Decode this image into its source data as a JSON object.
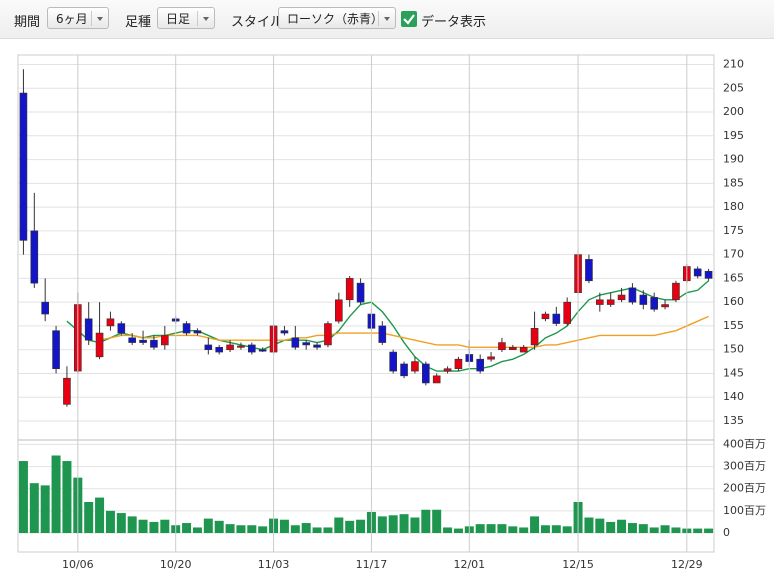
{
  "toolbar": {
    "items": [
      {
        "label": "期間",
        "value": "6ヶ月"
      },
      {
        "label": "足種",
        "value": "日足"
      },
      {
        "label": "スタイル",
        "value": "ローソク（赤青）"
      }
    ],
    "checkbox": "データ表示"
  },
  "chart_data": [
    {
      "type": "candlestick",
      "up_color": "#e60012",
      "down_color": "#1515c8",
      "open": [
        204,
        175,
        160,
        154,
        138.5,
        145.5,
        156.5,
        148.5,
        155,
        155.5,
        152.5,
        152,
        152,
        151,
        156.5,
        155.5,
        154,
        151,
        150.5,
        150,
        150.5,
        151,
        150,
        149.5,
        154,
        152.5,
        151.5,
        151,
        151,
        156,
        160.5,
        164,
        157.5,
        155,
        149.5,
        147,
        145.5,
        147,
        143,
        145.5,
        146,
        149,
        148,
        148,
        150,
        150,
        149.5,
        151,
        156.5,
        157.5,
        155.5,
        162,
        169,
        159.5,
        159.5,
        160.5,
        163,
        161.5,
        161,
        159,
        160.5,
        164.5,
        167,
        166.5
      ],
      "high": [
        209,
        183,
        165,
        155,
        146.5,
        162,
        160,
        160,
        158,
        156,
        153.5,
        154,
        153,
        155,
        157,
        156,
        154.5,
        152.5,
        151,
        152,
        151.5,
        151.5,
        150.5,
        155.5,
        155,
        155,
        152,
        151.5,
        156,
        162,
        165.5,
        165,
        158.5,
        156,
        150,
        147.5,
        148.5,
        147.5,
        145,
        146.5,
        148.5,
        152,
        149,
        149.5,
        152.5,
        151,
        151,
        158,
        158,
        159,
        161,
        171,
        170,
        162,
        162,
        163,
        164,
        162.5,
        162,
        160.5,
        164.5,
        168,
        167.5,
        167
      ],
      "low": [
        170,
        163,
        156,
        145,
        138,
        145,
        151,
        148,
        154,
        153,
        151,
        151,
        150,
        150,
        155.5,
        153,
        153,
        149,
        149,
        149.5,
        150,
        149,
        149.5,
        149,
        153,
        150,
        150,
        150,
        150.5,
        155.5,
        159,
        159.5,
        154,
        151,
        145,
        144,
        145,
        142.5,
        143,
        145,
        145.5,
        146.5,
        145,
        147.5,
        149.5,
        150,
        149.5,
        150,
        156,
        155,
        155,
        161.5,
        164,
        158,
        159,
        160,
        159.5,
        158.5,
        158,
        158.5,
        160,
        164,
        165,
        164.5
      ],
      "close": [
        173,
        164,
        157.5,
        146,
        144,
        159.5,
        152,
        153.5,
        156.5,
        153.5,
        151.5,
        151.5,
        150.5,
        153,
        156,
        153.5,
        153.5,
        150,
        149.5,
        151,
        150.8,
        149.5,
        149.8,
        155,
        153.5,
        150.5,
        151,
        150.5,
        155.5,
        160.5,
        165,
        160,
        154.5,
        151.5,
        145.5,
        144.5,
        147.5,
        143,
        144.5,
        146,
        148,
        147.5,
        145.5,
        148.5,
        151.5,
        150.5,
        150.5,
        154.5,
        157.5,
        155.5,
        160,
        170,
        164.5,
        160.5,
        160.5,
        161.5,
        160,
        159.5,
        158.5,
        159.5,
        164,
        167.5,
        165.5,
        165
      ],
      "moving_averages": [
        {
          "color": "#1d9a4e",
          "values": [
            null,
            null,
            null,
            null,
            156,
            154,
            152,
            151.5,
            152.5,
            153.5,
            153,
            152.5,
            153,
            153,
            153.5,
            154,
            154,
            153,
            152,
            151.5,
            151,
            150.5,
            150,
            151,
            152,
            152,
            152,
            151.5,
            152,
            154,
            157,
            159.5,
            160,
            158,
            155,
            151.5,
            148.5,
            146.5,
            145.5,
            145.5,
            145.5,
            146,
            146,
            146.5,
            147.5,
            148,
            149,
            150.5,
            152.5,
            153.5,
            155,
            158,
            160.5,
            161.5,
            162,
            162.5,
            163,
            162,
            161,
            160.5,
            160.5,
            162,
            162.5,
            164.5
          ]
        },
        {
          "color": "#f0a024",
          "values": [
            null,
            null,
            null,
            null,
            null,
            null,
            null,
            152,
            152.5,
            153,
            153,
            152.5,
            152.5,
            153,
            153,
            153,
            153,
            152.5,
            152,
            152,
            152,
            152,
            152,
            152,
            152,
            152.5,
            152.5,
            153,
            153,
            153.5,
            153.5,
            153.5,
            153.5,
            153.5,
            153,
            152.5,
            152,
            151.5,
            151,
            151,
            151,
            150.5,
            150.5,
            150.5,
            150.5,
            150.5,
            150.5,
            150.5,
            151,
            151,
            151.5,
            152,
            152.5,
            153,
            153,
            153,
            153,
            153,
            153,
            153.5,
            154,
            155,
            156,
            157
          ]
        }
      ],
      "ylim": [
        131,
        212
      ],
      "yticks": [
        135,
        140,
        145,
        150,
        155,
        160,
        165,
        170,
        175,
        180,
        185,
        190,
        195,
        200,
        205,
        210
      ],
      "grid": true
    },
    {
      "type": "bar",
      "color": "#1e9650",
      "categories": [
        null,
        null,
        null,
        null,
        null,
        "10/06",
        null,
        null,
        null,
        null,
        null,
        null,
        null,
        null,
        "10/20",
        null,
        null,
        null,
        null,
        null,
        null,
        null,
        null,
        "11/03",
        null,
        null,
        null,
        null,
        null,
        null,
        null,
        null,
        "11/17",
        null,
        null,
        null,
        null,
        null,
        null,
        null,
        null,
        "12/01",
        null,
        null,
        null,
        null,
        null,
        null,
        null,
        null,
        null,
        "12/15",
        null,
        null,
        null,
        null,
        null,
        null,
        null,
        null,
        null,
        "12/29",
        null,
        null
      ],
      "values": [
        325,
        225,
        215,
        350,
        325,
        250,
        140,
        160,
        100,
        90,
        75,
        60,
        50,
        60,
        35,
        45,
        25,
        65,
        55,
        40,
        35,
        35,
        30,
        65,
        60,
        35,
        45,
        25,
        25,
        70,
        55,
        60,
        95,
        75,
        80,
        85,
        70,
        105,
        105,
        25,
        20,
        30,
        40,
        40,
        40,
        30,
        25,
        75,
        35,
        35,
        30,
        140,
        70,
        65,
        50,
        60,
        45,
        40,
        25,
        35,
        25,
        20,
        20,
        20
      ],
      "ylim": [
        0,
        420
      ],
      "yticks": [
        {
          "value": 400,
          "label": "400百万"
        },
        {
          "value": 300,
          "label": "300百万"
        },
        {
          "value": 200,
          "label": "200百万"
        },
        {
          "value": 100,
          "label": "100百万"
        },
        0
      ],
      "grid": true
    }
  ]
}
